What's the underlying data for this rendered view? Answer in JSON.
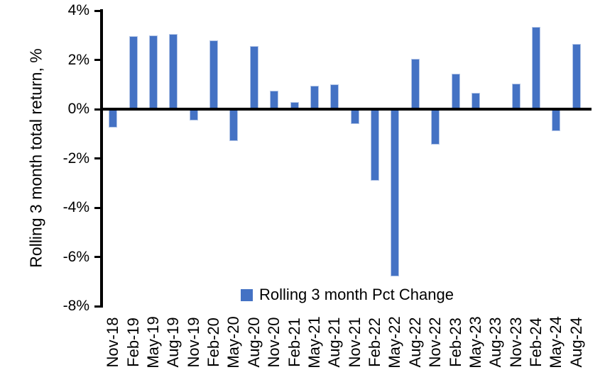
{
  "chart_data": {
    "type": "bar",
    "title": "",
    "xlabel": "",
    "ylabel": "Rolling 3 month total return, %",
    "legend": "Rolling 3 month Pct Change",
    "legend_position": "bottom-center",
    "grid": false,
    "ylim": [
      -8,
      4
    ],
    "ytick_step": 2,
    "ytick_labels": [
      "4%",
      "2%",
      "0%",
      "-2%",
      "-4%",
      "-6%",
      "-8%"
    ],
    "categories": [
      "Nov-18",
      "Feb-19",
      "May-19",
      "Aug-19",
      "Nov-19",
      "Feb-20",
      "May-20",
      "Aug-20",
      "Nov-20",
      "Feb-21",
      "May-21",
      "Aug-21",
      "Nov-21",
      "Feb-22",
      "May-22",
      "Aug-22",
      "Nov-22",
      "Feb-23",
      "May-23",
      "Aug-23",
      "Nov-23",
      "Feb-24",
      "May-24",
      "Aug-24"
    ],
    "values": [
      -0.75,
      2.95,
      3.0,
      3.05,
      -0.45,
      2.8,
      -1.3,
      2.55,
      0.75,
      0.3,
      0.95,
      1.0,
      -0.6,
      -2.9,
      -6.8,
      2.05,
      -1.45,
      1.45,
      0.65,
      0.0,
      1.05,
      3.35,
      -0.9,
      2.65
    ],
    "bar_color": "#4472C4",
    "bar_edge_color": "#B4C6E7",
    "axis_color": "#000000",
    "background_color": "#FFFFFF"
  }
}
